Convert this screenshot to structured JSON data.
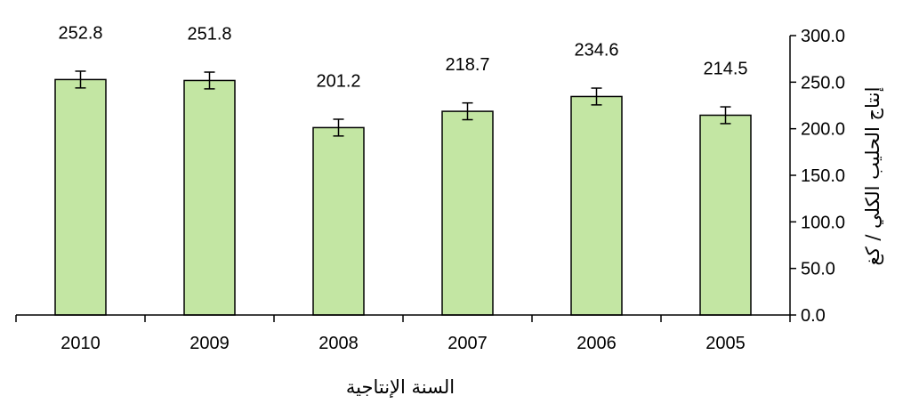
{
  "chart_data": {
    "type": "bar",
    "categories": [
      "2010",
      "2009",
      "2008",
      "2007",
      "2006",
      "2005"
    ],
    "values": [
      252.8,
      251.8,
      201.2,
      218.7,
      234.6,
      214.5
    ],
    "data_labels": [
      "252.8",
      "251.8",
      "201.2",
      "218.7",
      "234.6",
      "214.5"
    ],
    "error": [
      9,
      9,
      9,
      9,
      9,
      9
    ],
    "title": "",
    "xlabel": "السنة الإنتاجية",
    "ylabel": "إنتاج الحليب الكلي / كغ",
    "ylim": [
      0,
      300
    ],
    "yticks": [
      "0.0",
      "50.0",
      "100.0",
      "150.0",
      "200.0",
      "250.0",
      "300.0"
    ],
    "y_axis_side": "right",
    "grid": false,
    "legend": "none",
    "colors": {
      "bar_fill": "#c3e6a3",
      "bar_stroke": "#000000",
      "axis": "#000000"
    }
  }
}
